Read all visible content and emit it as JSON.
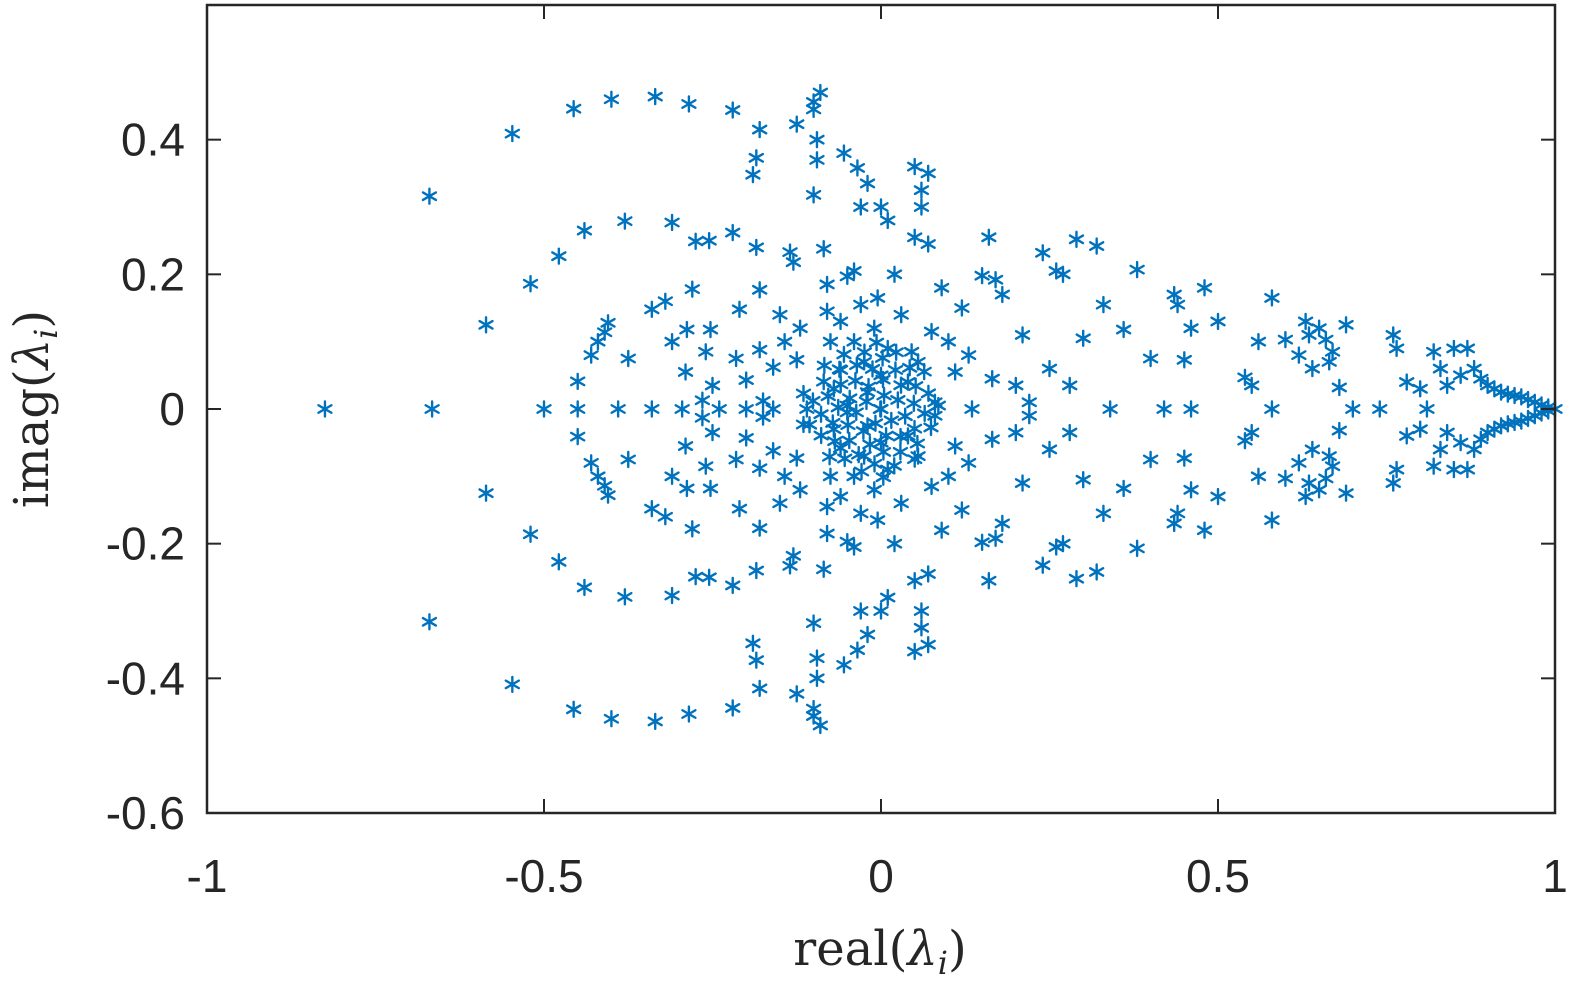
{
  "chart_data": {
    "type": "scatter",
    "title": "",
    "xlabel": "real(λi)",
    "ylabel": "imag(λi)",
    "xlabel_parts": {
      "func": "real(",
      "sym": "λ",
      "sub": "i",
      "close": ")"
    },
    "ylabel_parts": {
      "func": "imag(",
      "sym": "λ",
      "sub": "i",
      "close": ")"
    },
    "xlim": [
      -1,
      1
    ],
    "ylim": [
      -0.6,
      0.6
    ],
    "xticks": [
      -1,
      -0.5,
      0,
      0.5,
      1
    ],
    "xtick_labels": [
      "-1",
      "-0.5",
      "0",
      "0.5",
      "1"
    ],
    "yticks": [
      -0.6,
      -0.4,
      -0.2,
      0,
      0.2,
      0.4
    ],
    "ytick_labels": [
      "-0.6",
      "-0.4",
      "-0.2",
      "0",
      "0.2",
      "0.4"
    ],
    "grid": false,
    "legend": false,
    "marker": "asterisk",
    "color": "#0072BD",
    "series": [
      {
        "symmetric_about_real_axis": true,
        "points": [
          [
            -0.825,
            0
          ],
          [
            -0.67,
            0.316
          ],
          [
            -0.666,
            0
          ],
          [
            -0.586,
            0.125
          ],
          [
            -0.547,
            0.409
          ],
          [
            -0.52,
            0.186
          ],
          [
            -0.5,
            0
          ],
          [
            -0.478,
            0.227
          ],
          [
            -0.456,
            0.446
          ],
          [
            -0.45,
            0.041
          ],
          [
            -0.45,
            0
          ],
          [
            -0.44,
            0.265
          ],
          [
            -0.43,
            0.08
          ],
          [
            -0.42,
            0.1
          ],
          [
            -0.41,
            0.114
          ],
          [
            -0.405,
            0.128
          ],
          [
            -0.4,
            0.46
          ],
          [
            -0.39,
            0
          ],
          [
            -0.38,
            0.279
          ],
          [
            -0.375,
            0.075
          ],
          [
            -0.34,
            0.148
          ],
          [
            -0.34,
            0
          ],
          [
            -0.335,
            0.464
          ],
          [
            -0.32,
            0.16
          ],
          [
            -0.31,
            0.277
          ],
          [
            -0.31,
            0.1
          ],
          [
            -0.295,
            0
          ],
          [
            -0.29,
            0.055
          ],
          [
            -0.288,
            0.118
          ],
          [
            -0.285,
            0.453
          ],
          [
            -0.28,
            0.178
          ],
          [
            -0.275,
            0.249
          ],
          [
            -0.265,
            0.013
          ],
          [
            -0.26,
            0.085
          ],
          [
            -0.253,
            0.118
          ],
          [
            -0.25,
            0.035
          ],
          [
            -0.24,
            0
          ],
          [
            -0.255,
            0.25
          ],
          [
            -0.22,
            0.262
          ],
          [
            -0.22,
            0.444
          ],
          [
            -0.215,
            0.075
          ],
          [
            -0.21,
            0.148
          ],
          [
            -0.2,
            0.043
          ],
          [
            -0.2,
            0
          ],
          [
            -0.19,
            0.348
          ],
          [
            -0.185,
            0.373
          ],
          [
            -0.185,
            0.24
          ],
          [
            -0.18,
            0.415
          ],
          [
            -0.18,
            0.177
          ],
          [
            -0.18,
            0.088
          ],
          [
            -0.175,
            0.012
          ],
          [
            -0.16,
            0.062
          ],
          [
            -0.16,
            0
          ],
          [
            -0.15,
            0.14
          ],
          [
            -0.143,
            0.1
          ],
          [
            -0.135,
            0.233
          ],
          [
            -0.13,
            0.218
          ],
          [
            -0.125,
            0.423
          ],
          [
            -0.125,
            0.073
          ],
          [
            -0.12,
            0.12
          ],
          [
            -0.115,
            0.023
          ],
          [
            -0.11,
            0
          ],
          [
            -0.1,
            0.318
          ],
          [
            -0.1,
            0.445
          ],
          [
            -0.1,
            0.456
          ],
          [
            -0.095,
            0.4
          ],
          [
            -0.095,
            0.37
          ],
          [
            -0.09,
            0.47
          ],
          [
            -0.085,
            0.238
          ],
          [
            -0.08,
            0.185
          ],
          [
            -0.08,
            0.145
          ],
          [
            -0.075,
            0.1
          ],
          [
            -0.07,
            0.03
          ],
          [
            -0.06,
            0.13
          ],
          [
            -0.06,
            0.058
          ],
          [
            -0.055,
            0.38
          ],
          [
            -0.05,
            0.197
          ],
          [
            -0.05,
            0.005
          ],
          [
            -0.04,
            0.205
          ],
          [
            -0.04,
            0.1
          ],
          [
            -0.035,
            0.358
          ],
          [
            -0.03,
            0.3
          ],
          [
            -0.03,
            0.155
          ],
          [
            -0.025,
            0.07
          ],
          [
            -0.02,
            0.335
          ],
          [
            -0.02,
            0.025
          ],
          [
            -0.01,
            0.12
          ],
          [
            -0.005,
            0.165
          ],
          [
            0,
            0.3
          ],
          [
            0,
            0.05
          ],
          [
            0,
            0
          ],
          [
            0.01,
            0.28
          ],
          [
            0.01,
            0.09
          ],
          [
            0.02,
            0.2
          ],
          [
            0.03,
            0.14
          ],
          [
            0.04,
            0.04
          ],
          [
            0.05,
            0.36
          ],
          [
            0.05,
            0.255
          ],
          [
            0.055,
            0.07
          ],
          [
            0.06,
            0.3
          ],
          [
            0.06,
            0.325
          ],
          [
            0.07,
            0.35
          ],
          [
            0.07,
            0.245
          ],
          [
            0.075,
            0.115
          ],
          [
            0.08,
            0.01
          ],
          [
            0.09,
            0.18
          ],
          [
            0.1,
            0.1
          ],
          [
            0.11,
            0.055
          ],
          [
            0.12,
            0.15
          ],
          [
            0.13,
            0.08
          ],
          [
            0.135,
            0
          ],
          [
            0.15,
            0.198
          ],
          [
            0.16,
            0.255
          ],
          [
            0.165,
            0.045
          ],
          [
            0.17,
            0.192
          ],
          [
            0.18,
            0.17
          ],
          [
            0.2,
            0.035
          ],
          [
            0.21,
            0.11
          ],
          [
            0.22,
            0.01
          ],
          [
            0.24,
            0.232
          ],
          [
            0.25,
            0.06
          ],
          [
            0.26,
            0.205
          ],
          [
            0.27,
            0.2
          ],
          [
            0.28,
            0.035
          ],
          [
            0.29,
            0.252
          ],
          [
            0.3,
            0.105
          ],
          [
            0.32,
            0.242
          ],
          [
            0.33,
            0.155
          ],
          [
            0.34,
            0
          ],
          [
            0.36,
            0.118
          ],
          [
            0.38,
            0.207
          ],
          [
            0.4,
            0.075
          ],
          [
            0.42,
            0
          ],
          [
            0.435,
            0.17
          ],
          [
            0.44,
            0.155
          ],
          [
            0.45,
            0.073
          ],
          [
            0.46,
            0
          ],
          [
            0.46,
            0.12
          ],
          [
            0.48,
            0.18
          ],
          [
            0.5,
            0.13
          ],
          [
            0.54,
            0.047
          ],
          [
            0.55,
            0.035
          ],
          [
            0.56,
            0.1
          ],
          [
            0.58,
            0
          ],
          [
            0.58,
            0.165
          ],
          [
            0.6,
            0.103
          ],
          [
            0.62,
            0.08
          ],
          [
            0.63,
            0.13
          ],
          [
            0.635,
            0.11
          ],
          [
            0.64,
            0.06
          ],
          [
            0.65,
            0.12
          ],
          [
            0.66,
            0.103
          ],
          [
            0.665,
            0.07
          ],
          [
            0.67,
            0.085
          ],
          [
            0.68,
            0.032
          ],
          [
            0.69,
            0.125
          ],
          [
            0.7,
            0
          ],
          [
            0.74,
            0
          ],
          [
            0.76,
            0.11
          ],
          [
            0.765,
            0.09
          ],
          [
            0.78,
            0.04
          ],
          [
            0.8,
            0.03
          ],
          [
            0.81,
            0
          ],
          [
            0.82,
            0.085
          ],
          [
            0.83,
            0.06
          ],
          [
            0.84,
            0.035
          ],
          [
            0.85,
            0.09
          ],
          [
            0.86,
            0.05
          ],
          [
            0.87,
            0.09
          ],
          [
            0.88,
            0.06
          ],
          [
            0.89,
            0.045
          ],
          [
            0.9,
            0.035
          ],
          [
            0.91,
            0.03
          ],
          [
            0.92,
            0.025
          ],
          [
            0.93,
            0.022
          ],
          [
            0.94,
            0.02
          ],
          [
            0.95,
            0.018
          ],
          [
            0.96,
            0.014
          ],
          [
            0.97,
            0.01
          ],
          [
            0.98,
            0.006
          ],
          [
            0.99,
            0.003
          ],
          [
            1.0,
            0
          ]
        ]
      }
    ]
  }
}
